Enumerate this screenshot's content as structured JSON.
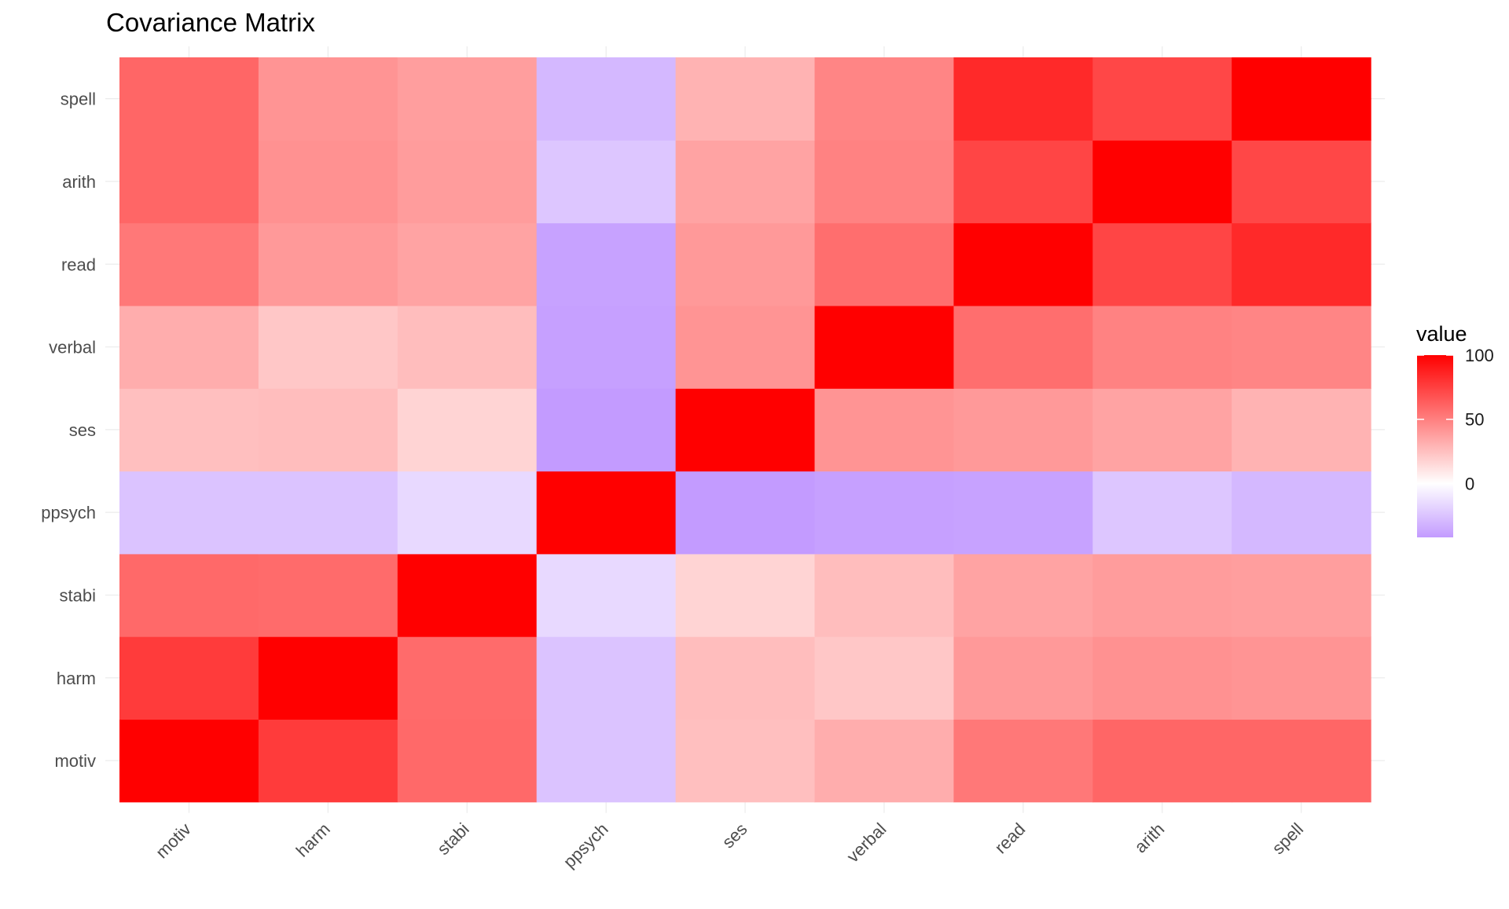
{
  "chart_data": {
    "type": "heatmap",
    "title": "Covariance Matrix",
    "xlabel": "",
    "ylabel": "",
    "x_categories": [
      "motiv",
      "harm",
      "stabi",
      "ppsych",
      "ses",
      "verbal",
      "read",
      "arith",
      "spell"
    ],
    "y_categories": [
      "motiv",
      "harm",
      "stabi",
      "ppsych",
      "ses",
      "verbal",
      "read",
      "arith",
      "spell"
    ],
    "values": [
      [
        100,
        77,
        59,
        -25,
        25,
        32,
        53,
        60,
        60
      ],
      [
        77,
        100,
        58,
        -25,
        26,
        22,
        40,
        43,
        42
      ],
      [
        59,
        58,
        100,
        -16,
        17,
        26,
        36,
        39,
        38
      ],
      [
        -25,
        -25,
        -16,
        100,
        -42,
        -40,
        -39,
        -24,
        -30
      ],
      [
        25,
        26,
        17,
        -42,
        100,
        42,
        40,
        36,
        30
      ],
      [
        32,
        22,
        26,
        -40,
        42,
        100,
        57,
        49,
        48
      ],
      [
        53,
        40,
        36,
        -39,
        40,
        57,
        100,
        73,
        84
      ],
      [
        60,
        43,
        39,
        -24,
        36,
        49,
        73,
        100,
        72
      ],
      [
        60,
        42,
        38,
        -30,
        30,
        48,
        84,
        72,
        100
      ]
    ],
    "color_scale": {
      "low_color": "#c39bff",
      "mid_color": "#ffffff",
      "high_color": "#ff0000",
      "midpoint": 0,
      "min": -42,
      "max": 100
    },
    "legend": {
      "title": "value",
      "ticks": [
        100,
        50,
        0
      ],
      "placement": "right"
    },
    "grid": true
  }
}
